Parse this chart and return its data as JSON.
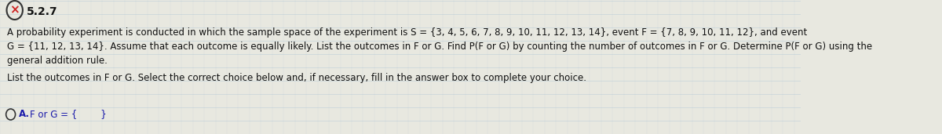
{
  "background_color": "#e8e8e0",
  "bg_line_color": "#b0c8d8",
  "title_text": "5.2.7",
  "paragraph1": "A probability experiment is conducted in which the sample space of the experiment is S = {3, 4, 5, 6, 7, 8, 9, 10, 11, 12, 13, 14}, event F = {7, 8, 9, 10, 11, 12}, and event",
  "paragraph2": "G = {11, 12, 13, 14}. Assume that each outcome is equally likely. List the outcomes in F or G. Find P(F or G) by counting the number of outcomes in F or G. Determine P(F or G) using the",
  "paragraph3": "general addition rule.",
  "paragraph4": "List the outcomes in F or G. Select the correct choice below and, if necessary, fill in the answer box to complete your choice.",
  "choice_label": "A.",
  "choice_text": "F or G = {        }",
  "text_color": "#111111",
  "choice_color": "#1a1aaa",
  "font_size_title": 10,
  "font_size_body": 8.5,
  "font_size_choice": 8.5
}
